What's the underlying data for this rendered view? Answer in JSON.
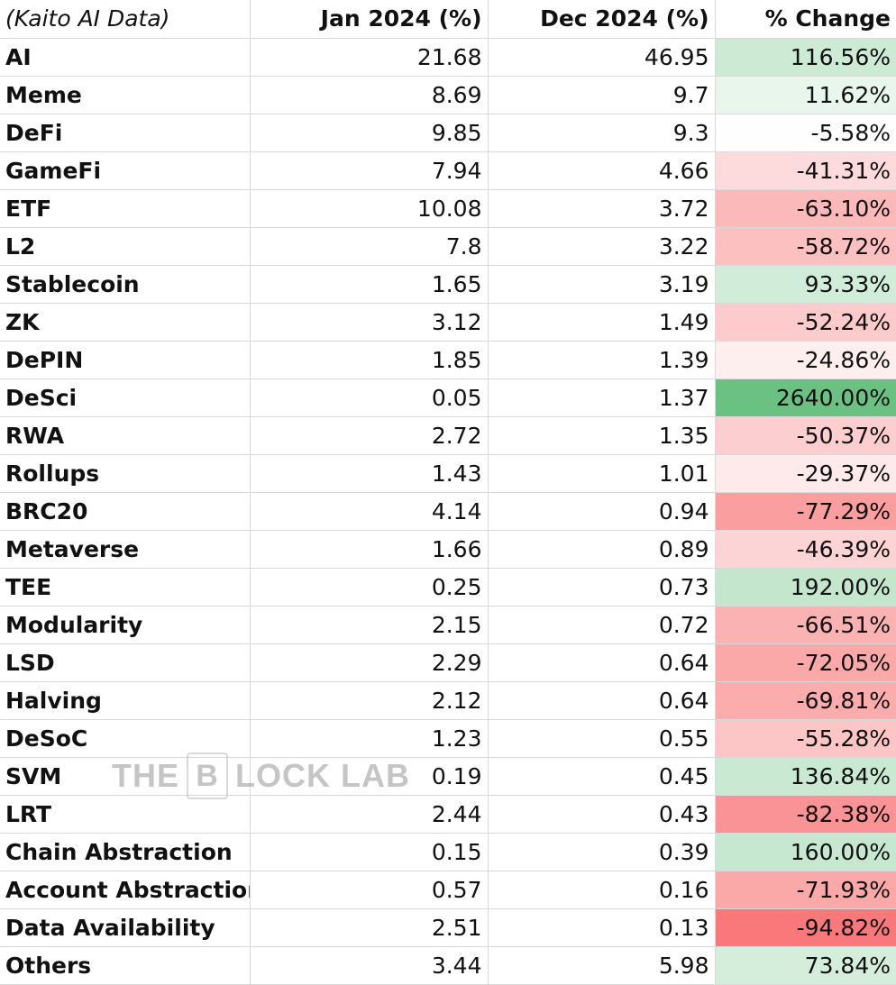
{
  "chart_data": {
    "type": "table",
    "columns": [
      "(Kaito AI Data)",
      "Jan 2024 (%)",
      "Dec 2024 (%)",
      "% Change"
    ],
    "rows": [
      {
        "name": "AI",
        "jan": "21.68",
        "dec": "46.95",
        "change": "116.56%",
        "pct": 116.56
      },
      {
        "name": "Meme",
        "jan": "8.69",
        "dec": "9.7",
        "change": "11.62%",
        "pct": 11.62
      },
      {
        "name": "DeFi",
        "jan": "9.85",
        "dec": "9.3",
        "change": "-5.58%",
        "pct": -5.58
      },
      {
        "name": "GameFi",
        "jan": "7.94",
        "dec": "4.66",
        "change": "-41.31%",
        "pct": -41.31
      },
      {
        "name": "ETF",
        "jan": "10.08",
        "dec": "3.72",
        "change": "-63.10%",
        "pct": -63.1
      },
      {
        "name": "L2",
        "jan": "7.8",
        "dec": "3.22",
        "change": "-58.72%",
        "pct": -58.72
      },
      {
        "name": "Stablecoin",
        "jan": "1.65",
        "dec": "3.19",
        "change": "93.33%",
        "pct": 93.33
      },
      {
        "name": "ZK",
        "jan": "3.12",
        "dec": "1.49",
        "change": "-52.24%",
        "pct": -52.24
      },
      {
        "name": "DePIN",
        "jan": "1.85",
        "dec": "1.39",
        "change": "-24.86%",
        "pct": -24.86
      },
      {
        "name": "DeSci",
        "jan": "0.05",
        "dec": "1.37",
        "change": "2640.00%",
        "pct": 2640.0
      },
      {
        "name": "RWA",
        "jan": "2.72",
        "dec": "1.35",
        "change": "-50.37%",
        "pct": -50.37
      },
      {
        "name": "Rollups",
        "jan": "1.43",
        "dec": "1.01",
        "change": "-29.37%",
        "pct": -29.37
      },
      {
        "name": "BRC20",
        "jan": "4.14",
        "dec": "0.94",
        "change": "-77.29%",
        "pct": -77.29
      },
      {
        "name": "Metaverse",
        "jan": "1.66",
        "dec": "0.89",
        "change": "-46.39%",
        "pct": -46.39
      },
      {
        "name": "TEE",
        "jan": "0.25",
        "dec": "0.73",
        "change": "192.00%",
        "pct": 192.0
      },
      {
        "name": "Modularity",
        "jan": "2.15",
        "dec": "0.72",
        "change": "-66.51%",
        "pct": -66.51
      },
      {
        "name": "LSD",
        "jan": "2.29",
        "dec": "0.64",
        "change": "-72.05%",
        "pct": -72.05
      },
      {
        "name": "Halving",
        "jan": "2.12",
        "dec": "0.64",
        "change": "-69.81%",
        "pct": -69.81
      },
      {
        "name": "DeSoC",
        "jan": "1.23",
        "dec": "0.55",
        "change": "-55.28%",
        "pct": -55.28
      },
      {
        "name": "SVM",
        "jan": "0.19",
        "dec": "0.45",
        "change": "136.84%",
        "pct": 136.84
      },
      {
        "name": "LRT",
        "jan": "2.44",
        "dec": "0.43",
        "change": "-82.38%",
        "pct": -82.38
      },
      {
        "name": "Chain Abstraction",
        "jan": "0.15",
        "dec": "0.39",
        "change": "160.00%",
        "pct": 160.0
      },
      {
        "name": "Account Abstraction",
        "jan": "0.57",
        "dec": "0.16",
        "change": "-71.93%",
        "pct": -71.93
      },
      {
        "name": "Data Availability",
        "jan": "2.51",
        "dec": "0.13",
        "change": "-94.82%",
        "pct": -94.82
      },
      {
        "name": "Others",
        "jan": "3.44",
        "dec": "5.98",
        "change": "73.84%",
        "pct": 73.84
      }
    ],
    "colors": {
      "positive_max": "#63be7b",
      "negative_max": "#f8696b",
      "neutral": "#ffffff"
    }
  },
  "watermark": {
    "text_left": "THE",
    "text_b": "B",
    "text_right": "LOCK LAB"
  }
}
